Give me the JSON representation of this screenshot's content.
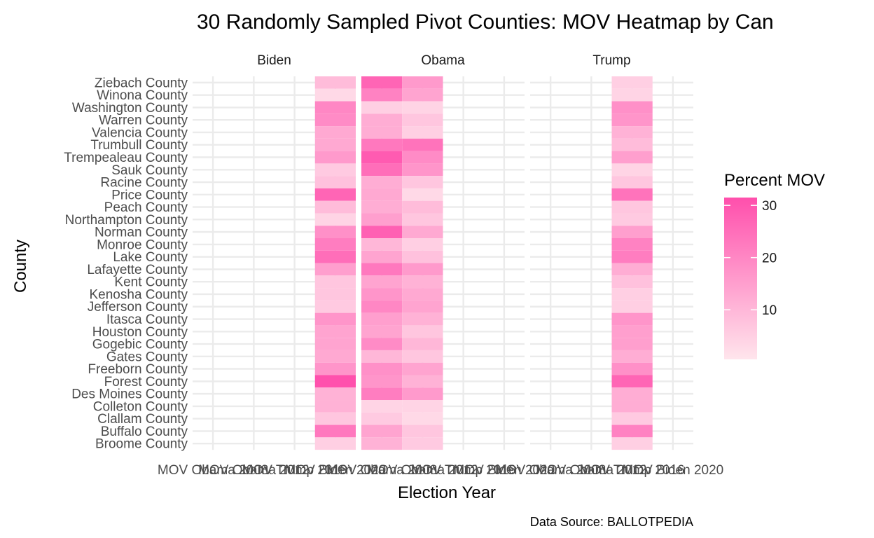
{
  "chart_data": {
    "type": "heatmap",
    "title": "30 Randomly Sampled Pivot Counties: MOV Heatmap by Can",
    "xlabel": "Election Year",
    "ylabel": "County",
    "caption": "Data Source: BALLOTPEDIA",
    "panels": [
      "Biden",
      "Obama",
      "Trump"
    ],
    "x_tick_labels": [
      "MOV Obama 2008",
      "MOV Obama 2012",
      "MOV Trump 2016",
      "MOV Biden 2020"
    ],
    "columns": {
      "Biden": [
        "MOV Biden 2020"
      ],
      "Obama": [
        "MOV Obama 2008",
        "MOV Obama 2012"
      ],
      "Trump": [
        "MOV Trump 2016"
      ]
    },
    "counties": [
      "Ziebach County",
      "Winona County",
      "Washington County",
      "Warren County",
      "Valencia County",
      "Trumbull County",
      "Trempealeau County",
      "Sauk County",
      "Racine County",
      "Price County",
      "Peach County",
      "Northampton County",
      "Norman County",
      "Monroe County",
      "Lake County",
      "Lafayette County",
      "Kent County",
      "Kenosha County",
      "Jefferson County",
      "Itasca County",
      "Houston County",
      "Gogebic County",
      "Gates County",
      "Freeborn County",
      "Forest County",
      "Des Moines County",
      "Colleton County",
      "Clallam County",
      "Buffalo County",
      "Broome County"
    ],
    "values": {
      "MOV Biden 2020": [
        9,
        3,
        20,
        19,
        13,
        13,
        16,
        6,
        8,
        27,
        9,
        4,
        18,
        22,
        25,
        15,
        7,
        7,
        6,
        17,
        14,
        14,
        13,
        17,
        31,
        11,
        11,
        7,
        23,
        5
      ],
      "MOV Obama 2008": [
        27,
        21,
        5,
        12,
        12,
        23,
        29,
        25,
        12,
        13,
        12,
        15,
        28,
        10,
        14,
        23,
        14,
        17,
        20,
        15,
        14,
        19,
        10,
        18,
        17,
        22,
        4,
        6,
        14,
        11
      ],
      "MOV Obama 2012": [
        16,
        14,
        4,
        7,
        5,
        24,
        19,
        17,
        7,
        3,
        9,
        7,
        13,
        5,
        8,
        16,
        11,
        13,
        14,
        11,
        7,
        10,
        7,
        14,
        11,
        16,
        4,
        3,
        7,
        6
      ],
      "MOV Trump 2016": [
        5,
        4,
        18,
        17,
        11,
        9,
        15,
        4,
        7,
        24,
        7,
        6,
        15,
        21,
        22,
        12,
        8,
        5,
        5,
        17,
        15,
        15,
        12,
        18,
        27,
        12,
        12,
        6,
        21,
        5
      ]
    },
    "legend": {
      "title": "Percent MOV",
      "ticks": [
        10,
        20,
        30
      ],
      "range": [
        0.5,
        31.5
      ],
      "color_low": "#ffe5ec",
      "color_high": "#ff4fac",
      "placement": "right"
    },
    "grid": true
  }
}
